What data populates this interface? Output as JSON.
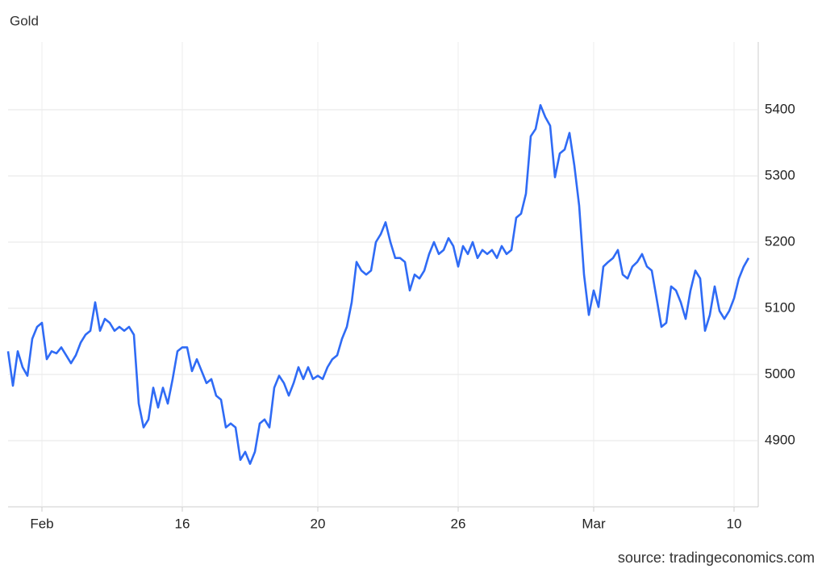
{
  "chart_data": {
    "type": "line",
    "title": "Gold",
    "source": "source: tradingeconomics.com",
    "color": "#2f6bf5",
    "categories": [
      null,
      null,
      null,
      null,
      null,
      null,
      null,
      "Feb",
      null,
      null,
      null,
      null,
      null,
      null,
      null,
      null,
      null,
      null,
      null,
      null,
      null,
      null,
      null,
      null,
      null,
      null,
      null,
      null,
      null,
      null,
      null,
      null,
      null,
      null,
      null,
      null,
      "16",
      null,
      null,
      null,
      null,
      null,
      null,
      null,
      null,
      null,
      null,
      null,
      null,
      null,
      null,
      null,
      null,
      null,
      null,
      null,
      null,
      null,
      null,
      null,
      null,
      null,
      null,
      null,
      "20",
      null,
      null,
      null,
      null,
      null,
      null,
      null,
      null,
      null,
      null,
      null,
      null,
      null,
      null,
      null,
      null,
      null,
      null,
      null,
      null,
      null,
      null,
      null,
      null,
      null,
      null,
      null,
      null,
      "26",
      null,
      null,
      null,
      null,
      null,
      null,
      null,
      null,
      null,
      null,
      null,
      null,
      null,
      null,
      null,
      null,
      null,
      null,
      null,
      null,
      null,
      null,
      null,
      null,
      null,
      null,
      null,
      "Mar",
      null,
      null,
      null,
      null,
      null,
      null,
      null,
      null,
      null,
      null,
      null,
      null,
      null,
      null,
      null,
      null,
      null,
      null,
      null,
      null,
      null,
      null,
      null,
      null,
      null,
      null,
      null,
      null,
      "10",
      null,
      null,
      null
    ],
    "values": [
      5035,
      4983,
      5035,
      5011,
      4998,
      5054,
      5072,
      5078,
      5023,
      5035,
      5032,
      5041,
      5029,
      5017,
      5029,
      5048,
      5060,
      5066,
      5109,
      5066,
      5084,
      5078,
      5066,
      5072,
      5066,
      5072,
      5060,
      4956,
      4920,
      4932,
      4980,
      4950,
      4980,
      4956,
      4993,
      5035,
      5041,
      5041,
      5005,
      5023,
      5005,
      4987,
      4993,
      4968,
      4962,
      4920,
      4926,
      4920,
      4871,
      4883,
      4865,
      4883,
      4926,
      4932,
      4920,
      4980,
      4998,
      4987,
      4968,
      4987,
      5011,
      4993,
      5011,
      4993,
      4998,
      4993,
      5011,
      5023,
      5029,
      5054,
      5072,
      5109,
      5170,
      5157,
      5151,
      5157,
      5200,
      5212,
      5230,
      5200,
      5176,
      5176,
      5170,
      5127,
      5151,
      5145,
      5157,
      5182,
      5200,
      5182,
      5188,
      5206,
      5194,
      5163,
      5194,
      5182,
      5200,
      5176,
      5188,
      5182,
      5188,
      5176,
      5194,
      5182,
      5188,
      5237,
      5243,
      5273,
      5360,
      5371,
      5407,
      5389,
      5376,
      5298,
      5334,
      5340,
      5365,
      5316,
      5255,
      5151,
      5090,
      5127,
      5102,
      5163,
      5170,
      5176,
      5188,
      5151,
      5145,
      5163,
      5170,
      5182,
      5163,
      5157,
      5115,
      5072,
      5078,
      5133,
      5127,
      5109,
      5084,
      5127,
      5157,
      5145,
      5066,
      5090,
      5133,
      5096,
      5084,
      5096,
      5115,
      5145,
      5163,
      5176
    ],
    "ylim": [
      4800,
      5500
    ],
    "yticks": [
      4900,
      5000,
      5100,
      5200,
      5300,
      5400
    ],
    "grid": true
  }
}
